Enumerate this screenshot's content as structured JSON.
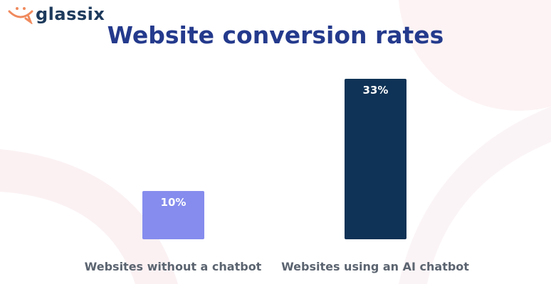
{
  "brand": {
    "name": "glassix",
    "logo_color": "#f08a5d",
    "text_color": "#1d3a5c"
  },
  "chart_data": {
    "type": "bar",
    "title": "Website conversion rates",
    "categories": [
      "Websites without a chatbot",
      "Websites using an AI chatbot"
    ],
    "values": [
      10,
      33
    ],
    "data_labels": [
      "10%",
      "33%"
    ],
    "colors": [
      "#858ced",
      "#0f3356"
    ],
    "xlabel": "",
    "ylabel": "",
    "ylim": [
      0,
      33
    ],
    "grid": false
  }
}
